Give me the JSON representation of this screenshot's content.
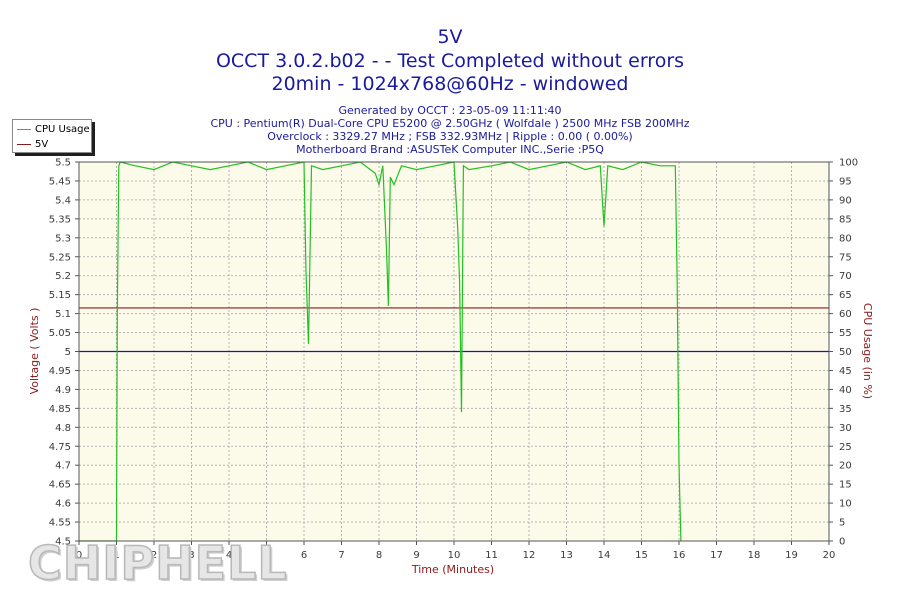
{
  "header": {
    "title": "5V",
    "subtitle1": "OCCT 3.0.2.b02 -  - Test Completed without errors",
    "subtitle2": "20min - 1024x768@60Hz - windowed",
    "info": [
      "Generated by OCCT : 23-05-09 11:11:40",
      "CPU : Pentium(R) Dual-Core CPU E5200 @ 2.50GHz ( Wolfdale ) 2500 MHz FSB 200MHz",
      "Overclock : 3329.27 MHz ; FSB 332.93MHz | Ripple : 0.00 ( 0.00%)",
      "Motherboard Brand :ASUSTeK Computer INC.,Serie :P5Q"
    ]
  },
  "legend": {
    "items": [
      {
        "label": "CPU Usage",
        "color": "#22c022"
      },
      {
        "label": "5V",
        "color": "#8b1a1a"
      }
    ]
  },
  "watermark": "CHIPHELL",
  "colors": {
    "plot_bg": "#fcfbea",
    "grid": "#b4b4b4",
    "axis_text": "#3a3a3a",
    "axis_label": "#8b1a1a",
    "cpu_line": "#22c022",
    "voltage_line": "#8b1a1a",
    "blue_line": "#1a1a9c"
  },
  "chart_data": {
    "type": "line",
    "xlabel": "Time (Minutes)",
    "ylabel": "Voltage ( Volts )",
    "y2label": "CPU Usage (in %)",
    "xlim": [
      0,
      20
    ],
    "ylim": [
      4.5,
      5.5
    ],
    "y2lim": [
      0,
      100
    ],
    "x_ticks": [
      0,
      1,
      2,
      3,
      4,
      5,
      6,
      7,
      8,
      9,
      10,
      11,
      12,
      13,
      14,
      15,
      16,
      17,
      18,
      19,
      20
    ],
    "y_ticks": [
      "4.5",
      "4.55",
      "4.6",
      "4.65",
      "4.7",
      "4.75",
      "4.8",
      "4.85",
      "4.9",
      "4.95",
      "5",
      "5.05",
      "5.1",
      "5.15",
      "5.2",
      "5.25",
      "5.3",
      "5.35",
      "5.4",
      "5.45",
      "5.5"
    ],
    "y2_ticks": [
      "0",
      "5",
      "10",
      "15",
      "20",
      "25",
      "30",
      "35",
      "40",
      "45",
      "50",
      "55",
      "60",
      "65",
      "70",
      "75",
      "80",
      "85",
      "90",
      "95",
      "100"
    ],
    "grid": true,
    "legend_position": "top-left",
    "horizontal_lines": [
      {
        "name": "5V",
        "axis": "y",
        "value": 5.115
      },
      {
        "axis": "y",
        "value": 5.0
      }
    ],
    "series": [
      {
        "name": "CPU Usage",
        "axis": "y2",
        "x": [
          0.0,
          1.0,
          1.02,
          1.06,
          1.1,
          1.5,
          2.0,
          2.5,
          3.0,
          3.5,
          4.0,
          4.5,
          5.0,
          5.5,
          6.0,
          6.05,
          6.12,
          6.2,
          6.5,
          7.0,
          7.5,
          7.9,
          8.0,
          8.1,
          8.2,
          8.25,
          8.3,
          8.4,
          8.6,
          9.0,
          9.5,
          10.0,
          10.1,
          10.15,
          10.2,
          10.25,
          10.4,
          11.0,
          11.5,
          12.0,
          12.5,
          13.0,
          13.5,
          13.9,
          14.0,
          14.05,
          14.1,
          14.5,
          15.0,
          15.5,
          15.9,
          15.95,
          16.0,
          16.05
        ],
        "y": [
          0,
          0,
          60,
          99,
          100,
          99,
          98,
          100,
          99,
          98,
          99,
          100,
          98,
          99,
          100,
          72,
          52,
          99,
          98,
          99,
          100,
          97,
          94,
          99,
          77,
          62,
          96,
          94,
          99,
          98,
          99,
          100,
          82,
          68,
          34,
          99,
          98,
          99,
          100,
          98,
          99,
          100,
          98,
          99,
          83,
          91,
          99,
          98,
          100,
          99,
          99,
          70,
          20,
          0
        ]
      }
    ]
  }
}
